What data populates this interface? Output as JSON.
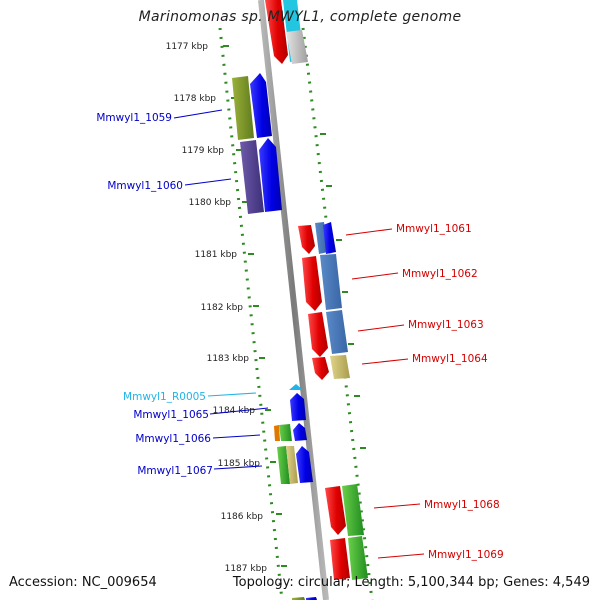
{
  "title": "Marinomonas sp. MWYL1, complete genome",
  "footer": {
    "accession": "Accession: NC_009654",
    "summary": "Topology: circular; Length: 5,100,344 bp; Genes: 4,549"
  },
  "colors": {
    "backbone": "#8c8c8c",
    "tick_green": "#2e8b22",
    "forward_label": "#d40000",
    "reverse_label": "#0000c8",
    "rna_label": "#22b4e6"
  },
  "kbp_ticks": [
    "1177 kbp",
    "1178 kbp",
    "1179 kbp",
    "1180 kbp",
    "1181 kbp",
    "1182 kbp",
    "1183 kbp",
    "1184 kbp",
    "1185 kbp",
    "1186 kbp",
    "1187 kbp"
  ],
  "genes_reverse": [
    {
      "label": "Mmwyl1_1059",
      "color": "#0000c8"
    },
    {
      "label": "Mmwyl1_1060",
      "color": "#0000c8"
    },
    {
      "label": "Mmwyl1_R0005",
      "color": "#22b4e6"
    },
    {
      "label": "Mmwyl1_1065",
      "color": "#0000c8"
    },
    {
      "label": "Mmwyl1_1066",
      "color": "#0000c8"
    },
    {
      "label": "Mmwyl1_1067",
      "color": "#0000c8"
    }
  ],
  "genes_forward": [
    {
      "label": "Mmwyl1_1061",
      "color": "#d40000"
    },
    {
      "label": "Mmwyl1_1062",
      "color": "#d40000"
    },
    {
      "label": "Mmwyl1_1063",
      "color": "#d40000"
    },
    {
      "label": "Mmwyl1_1064",
      "color": "#d40000"
    },
    {
      "label": "Mmwyl1_1068",
      "color": "#d40000"
    },
    {
      "label": "Mmwyl1_1069",
      "color": "#d40000"
    }
  ]
}
